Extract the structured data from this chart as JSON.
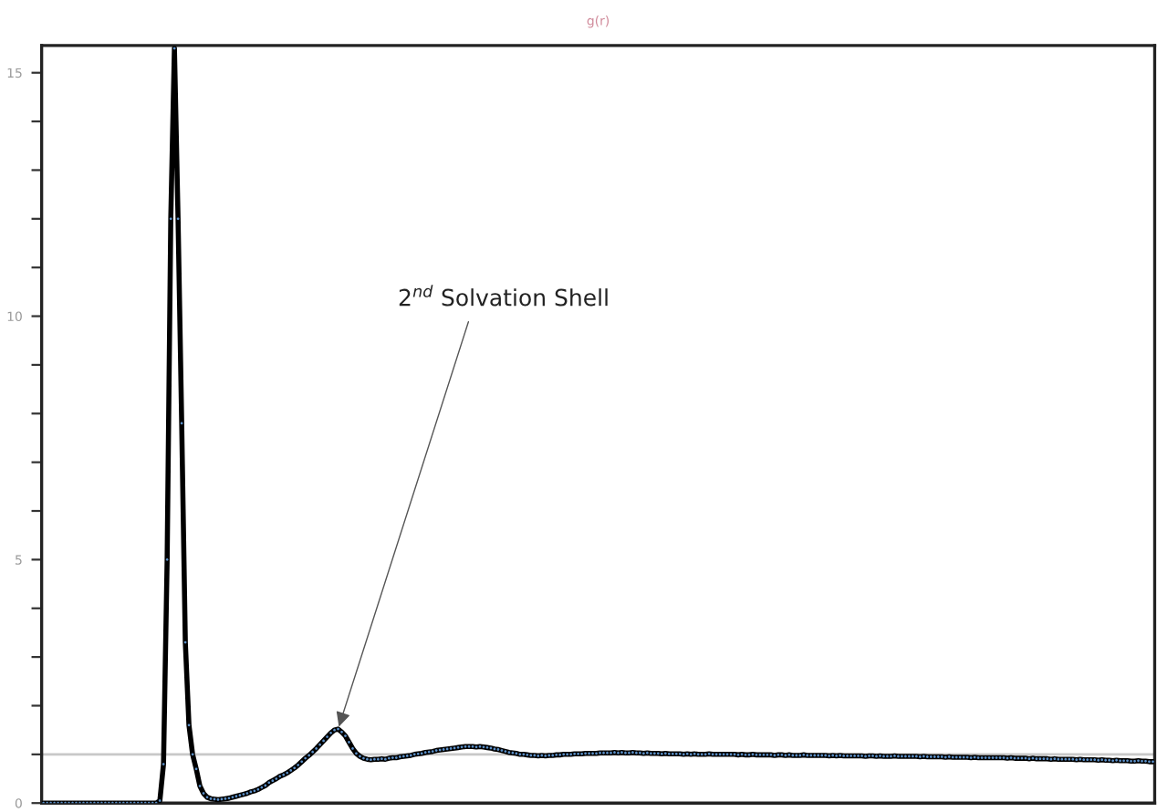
{
  "chart_data": {
    "type": "line",
    "title": "g(r)",
    "categories": [
      null,
      null,
      null,
      null,
      null,
      null,
      null,
      null,
      null,
      null,
      null,
      null,
      null,
      null,
      null,
      null,
      null,
      null,
      null,
      null,
      null,
      null,
      null,
      null,
      null,
      null,
      null,
      null,
      null,
      null,
      null,
      null,
      null,
      null,
      null,
      null,
      null,
      null,
      null,
      null,
      null,
      null,
      null,
      null,
      null,
      null,
      null,
      null,
      null,
      null,
      null,
      null,
      null,
      null,
      null,
      null,
      null,
      null,
      null,
      null,
      null,
      null,
      null,
      null,
      null,
      null,
      null,
      null,
      null,
      null,
      null,
      null,
      null,
      null,
      null,
      null,
      null,
      null,
      null,
      null,
      null,
      null,
      null,
      null,
      null,
      null,
      null,
      null,
      null,
      null,
      null,
      null,
      null,
      null,
      null,
      null,
      null,
      null,
      null,
      null,
      null,
      null,
      null,
      null,
      null,
      null,
      null,
      null,
      null,
      null,
      null,
      null,
      null,
      null,
      null,
      null,
      null,
      null,
      null,
      null,
      null,
      null,
      null,
      null,
      null,
      null,
      null,
      null,
      null,
      null,
      null,
      null,
      null,
      null,
      null,
      null,
      null,
      null,
      null,
      null,
      null,
      null,
      null,
      null,
      null,
      null,
      null,
      null,
      null,
      null,
      null,
      null,
      null,
      null,
      null,
      null,
      null,
      null,
      null,
      null,
      null,
      null,
      null,
      null,
      null,
      null,
      null,
      null,
      null,
      null,
      null,
      null,
      null,
      null,
      null,
      null,
      null,
      null,
      null,
      null,
      null,
      null,
      null,
      null,
      null,
      null,
      null,
      null,
      null,
      null,
      null,
      null,
      null,
      null,
      null,
      null,
      null,
      null,
      null,
      null,
      null,
      null,
      null,
      null,
      null,
      null,
      null,
      null,
      null,
      null,
      null,
      null,
      null,
      null,
      null,
      null,
      null,
      null,
      null,
      null,
      null,
      null,
      null,
      null,
      null,
      null,
      null,
      null,
      null,
      null,
      null,
      null,
      null,
      null,
      null,
      null,
      null,
      null,
      null,
      null,
      null,
      null,
      null,
      null,
      null,
      null,
      null,
      null,
      null,
      null,
      null,
      null,
      null,
      null,
      null,
      null,
      null,
      null,
      null,
      null,
      null,
      null,
      null,
      null,
      null,
      null,
      null,
      null,
      null,
      null,
      null,
      null,
      null,
      null,
      null,
      null,
      null,
      null,
      null,
      null,
      null,
      null,
      null,
      null,
      null,
      null,
      null,
      null,
      null,
      null,
      null,
      null,
      null,
      null,
      null,
      null,
      null,
      null,
      null,
      null,
      null,
      null,
      null,
      null,
      null,
      null
    ],
    "series": [
      {
        "color": "#000000",
        "values": [
          0,
          0,
          0,
          0,
          0,
          0,
          0,
          0,
          0,
          0,
          0,
          0,
          0,
          0,
          0,
          0,
          0,
          0,
          0,
          0,
          0,
          0,
          0,
          0,
          0,
          0,
          0,
          0,
          0,
          0,
          0,
          0,
          0.05,
          0.8,
          5,
          12,
          15.5,
          12,
          7.8,
          3.3,
          1.6,
          1,
          0.7,
          0.35,
          0.2,
          0.12,
          0.09,
          0.08,
          0.07,
          0.08,
          0.09,
          0.1,
          0.12,
          0.14,
          0.16,
          0.18,
          0.2,
          0.23,
          0.25,
          0.28,
          0.32,
          0.36,
          0.42,
          0.46,
          0.5,
          0.55,
          0.58,
          0.62,
          0.67,
          0.72,
          0.78,
          0.85,
          0.92,
          0.98,
          1.05,
          1.12,
          1.2,
          1.28,
          1.36,
          1.44,
          1.5,
          1.52,
          1.46,
          1.38,
          1.25,
          1.12,
          1.02,
          0.96,
          0.92,
          0.9,
          0.89,
          0.9,
          0.9,
          0.91,
          0.9,
          0.92,
          0.93,
          0.93,
          0.95,
          0.96,
          0.97,
          0.98,
          1.0,
          1.01,
          1.02,
          1.04,
          1.05,
          1.06,
          1.08,
          1.09,
          1.1,
          1.11,
          1.12,
          1.13,
          1.14,
          1.15,
          1.16,
          1.16,
          1.16,
          1.15,
          1.16,
          1.15,
          1.14,
          1.13,
          1.11,
          1.1,
          1.08,
          1.06,
          1.04,
          1.03,
          1.02,
          1.0,
          1.0,
          0.99,
          0.98,
          0.98,
          0.97,
          0.98,
          0.97,
          0.98,
          0.98,
          0.99,
          0.99,
          1.0,
          1.0,
          1.0,
          1.01,
          1.01,
          1.01,
          1.02,
          1.02,
          1.02,
          1.02,
          1.03,
          1.03,
          1.03,
          1.03,
          1.04,
          1.03,
          1.04,
          1.03,
          1.03,
          1.04,
          1.03,
          1.03,
          1.02,
          1.03,
          1.02,
          1.02,
          1.02,
          1.01,
          1.02,
          1.01,
          1.01,
          1.01,
          1.01,
          1.0,
          1.01,
          1.0,
          1.01,
          1.0,
          1.0,
          1.0,
          1.01,
          1.0,
          1.0,
          1.0,
          1.0,
          1.0,
          1.0,
          1.0,
          0.99,
          1.0,
          0.99,
          0.99,
          1.0,
          0.99,
          0.99,
          0.99,
          0.99,
          0.99,
          0.98,
          0.99,
          0.99,
          0.98,
          0.99,
          0.98,
          0.98,
          0.98,
          0.99,
          0.98,
          0.98,
          0.98,
          0.98,
          0.98,
          0.98,
          0.97,
          0.98,
          0.97,
          0.98,
          0.97,
          0.97,
          0.97,
          0.97,
          0.97,
          0.97,
          0.96,
          0.97,
          0.97,
          0.96,
          0.97,
          0.96,
          0.96,
          0.96,
          0.97,
          0.96,
          0.96,
          0.96,
          0.96,
          0.96,
          0.96,
          0.95,
          0.96,
          0.95,
          0.95,
          0.95,
          0.95,
          0.95,
          0.94,
          0.95,
          0.94,
          0.94,
          0.94,
          0.94,
          0.94,
          0.93,
          0.94,
          0.93,
          0.93,
          0.93,
          0.93,
          0.93,
          0.93,
          0.93,
          0.93,
          0.92,
          0.93,
          0.92,
          0.92,
          0.92,
          0.92,
          0.91,
          0.92,
          0.91,
          0.91,
          0.91,
          0.91,
          0.9,
          0.91,
          0.9,
          0.9,
          0.9,
          0.9,
          0.9,
          0.89,
          0.9,
          0.89,
          0.89,
          0.89,
          0.89,
          0.88,
          0.89,
          0.88,
          0.88,
          0.87,
          0.88,
          0.87,
          0.87,
          0.87,
          0.86,
          0.86,
          0.87,
          0.86,
          0.86,
          0.85,
          0.85
        ]
      }
    ],
    "marker": "circle",
    "line_style": "solid",
    "ylim": [
      0,
      15.56
    ],
    "yticks": [
      0,
      {
        "value": 1,
        "label": null
      },
      {
        "value": 2,
        "label": null
      },
      {
        "value": 3,
        "label": null
      },
      {
        "value": 4,
        "label": null
      },
      5,
      {
        "value": 6,
        "label": null
      },
      {
        "value": 7,
        "label": null
      },
      {
        "value": 8,
        "label": null
      },
      {
        "value": 9,
        "label": null
      },
      10,
      {
        "value": 11,
        "label": null
      },
      {
        "value": 12,
        "label": null
      },
      {
        "value": 13,
        "label": null
      },
      {
        "value": 14,
        "label": null
      },
      15
    ],
    "ref_lines": [
      {
        "axis": "y",
        "value": 1,
        "color": "#c8c8c8"
      }
    ],
    "annotations": [
      "2$^{nd}$ Solvation Shell"
    ],
    "grid": false
  }
}
